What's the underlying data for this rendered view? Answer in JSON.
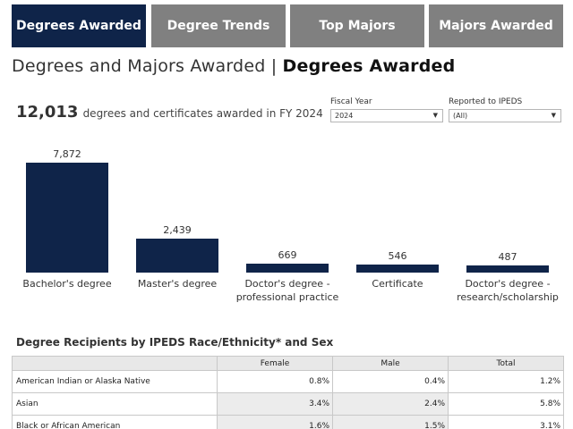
{
  "tabs": [
    {
      "label": "Degrees Awarded",
      "active": true
    },
    {
      "label": "Degree Trends",
      "active": false
    },
    {
      "label": "Top Majors",
      "active": false
    },
    {
      "label": "Majors Awarded",
      "active": false
    }
  ],
  "title": {
    "prefix": "Degrees and Majors Awarded | ",
    "section": "Degrees Awarded"
  },
  "summary": {
    "total": "12,013",
    "text": "degrees and certificates awarded in FY 2024"
  },
  "filters": {
    "fiscal_year": {
      "label": "Fiscal Year",
      "value": "2024"
    },
    "ipeds": {
      "label": "Reported to IPEDS",
      "value": "(All)"
    }
  },
  "chart_data": {
    "type": "bar",
    "title": "",
    "categories": [
      [
        "Bachelor's degree"
      ],
      [
        "Master's degree"
      ],
      [
        "Doctor's degree -",
        "professional practice"
      ],
      [
        "Certificate"
      ],
      [
        "Doctor's degree -",
        "research/scholarship"
      ]
    ],
    "values": [
      7872,
      2439,
      669,
      546,
      487
    ],
    "value_labels": [
      "7,872",
      "2,439",
      "669",
      "546",
      "487"
    ],
    "ylim": [
      0,
      7872
    ],
    "color": "#0f2449"
  },
  "race_table": {
    "title": "Degree Recipients by IPEDS Race/Ethnicity* and Sex",
    "columns": [
      "",
      "Female",
      "Male",
      "Total"
    ],
    "rows": [
      {
        "label": "American Indian or Alaska Native",
        "female": "0.8%",
        "male": "0.4%",
        "total": "1.2%"
      },
      {
        "label": "Asian",
        "female": "3.4%",
        "male": "2.4%",
        "total": "5.8%"
      },
      {
        "label": "Black or African American",
        "female": "1.6%",
        "male": "1.5%",
        "total": "3.1%"
      }
    ]
  },
  "colors": {
    "accent": "#0f2449",
    "tab_inactive": "#808080"
  }
}
